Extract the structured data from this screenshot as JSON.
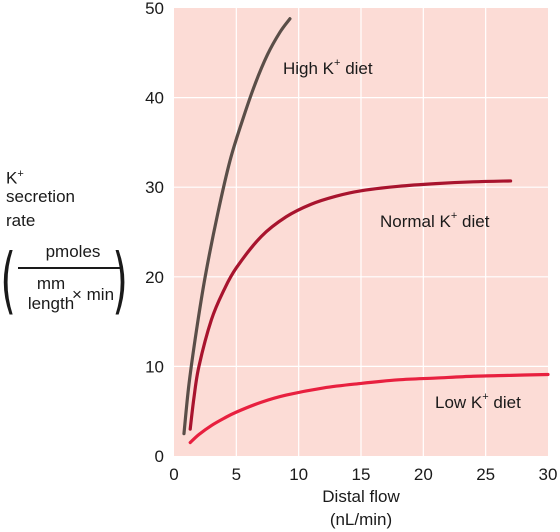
{
  "chart_data": {
    "type": "line",
    "xlabel_line1": "Distal flow",
    "xlabel_line2": "(nL/min)",
    "ylabel": {
      "base": "K",
      "sup": "+",
      "line2": "secretion",
      "line3": "rate",
      "unit_numerator": "pmoles",
      "unit_denominator_top": "mm",
      "unit_denominator_bottom": "length",
      "unit_times": "× min"
    },
    "xlim": [
      0,
      30
    ],
    "ylim": [
      0,
      50
    ],
    "x_ticks": [
      "0",
      "5",
      "10",
      "15",
      "20",
      "25",
      "30"
    ],
    "y_ticks": [
      "0",
      "10",
      "20",
      "30",
      "40",
      "50"
    ],
    "grid": true,
    "background_color": "#fcdcd6",
    "grid_color": "#ffffff",
    "series": [
      {
        "name": "High K+ diet",
        "label_base": "High K",
        "label_sup": "+",
        "label_suffix": " diet",
        "color": "#5a4e48",
        "x": [
          0.8,
          1.2,
          1.8,
          2.5,
          3.5,
          4.5,
          5.5,
          6.5,
          7.5,
          8.5,
          9.3
        ],
        "y": [
          2.5,
          8,
          14,
          20,
          27,
          33,
          37.5,
          41.5,
          44.8,
          47.3,
          48.8
        ]
      },
      {
        "name": "Normal K+ diet",
        "label_base": "Normal K",
        "label_sup": "+",
        "label_suffix": " diet",
        "color": "#a8142e",
        "x": [
          1.3,
          1.6,
          2,
          3,
          4,
          5,
          7,
          9,
          11,
          13,
          15,
          18,
          21,
          24,
          27
        ],
        "y": [
          3,
          6.5,
          10,
          15.2,
          18.5,
          21,
          24.5,
          26.7,
          28.1,
          29,
          29.6,
          30.1,
          30.4,
          30.6,
          30.7
        ]
      },
      {
        "name": "Low K+ diet",
        "label_base": "Low K",
        "label_sup": "+",
        "label_suffix": " diet",
        "color": "#e8203f",
        "x": [
          1.3,
          2,
          3,
          4,
          5,
          7,
          9,
          12,
          15,
          18,
          21,
          24,
          27,
          30
        ],
        "y": [
          1.5,
          2.4,
          3.4,
          4.2,
          4.9,
          6,
          6.8,
          7.6,
          8.1,
          8.5,
          8.7,
          8.9,
          9.0,
          9.1
        ]
      }
    ]
  }
}
